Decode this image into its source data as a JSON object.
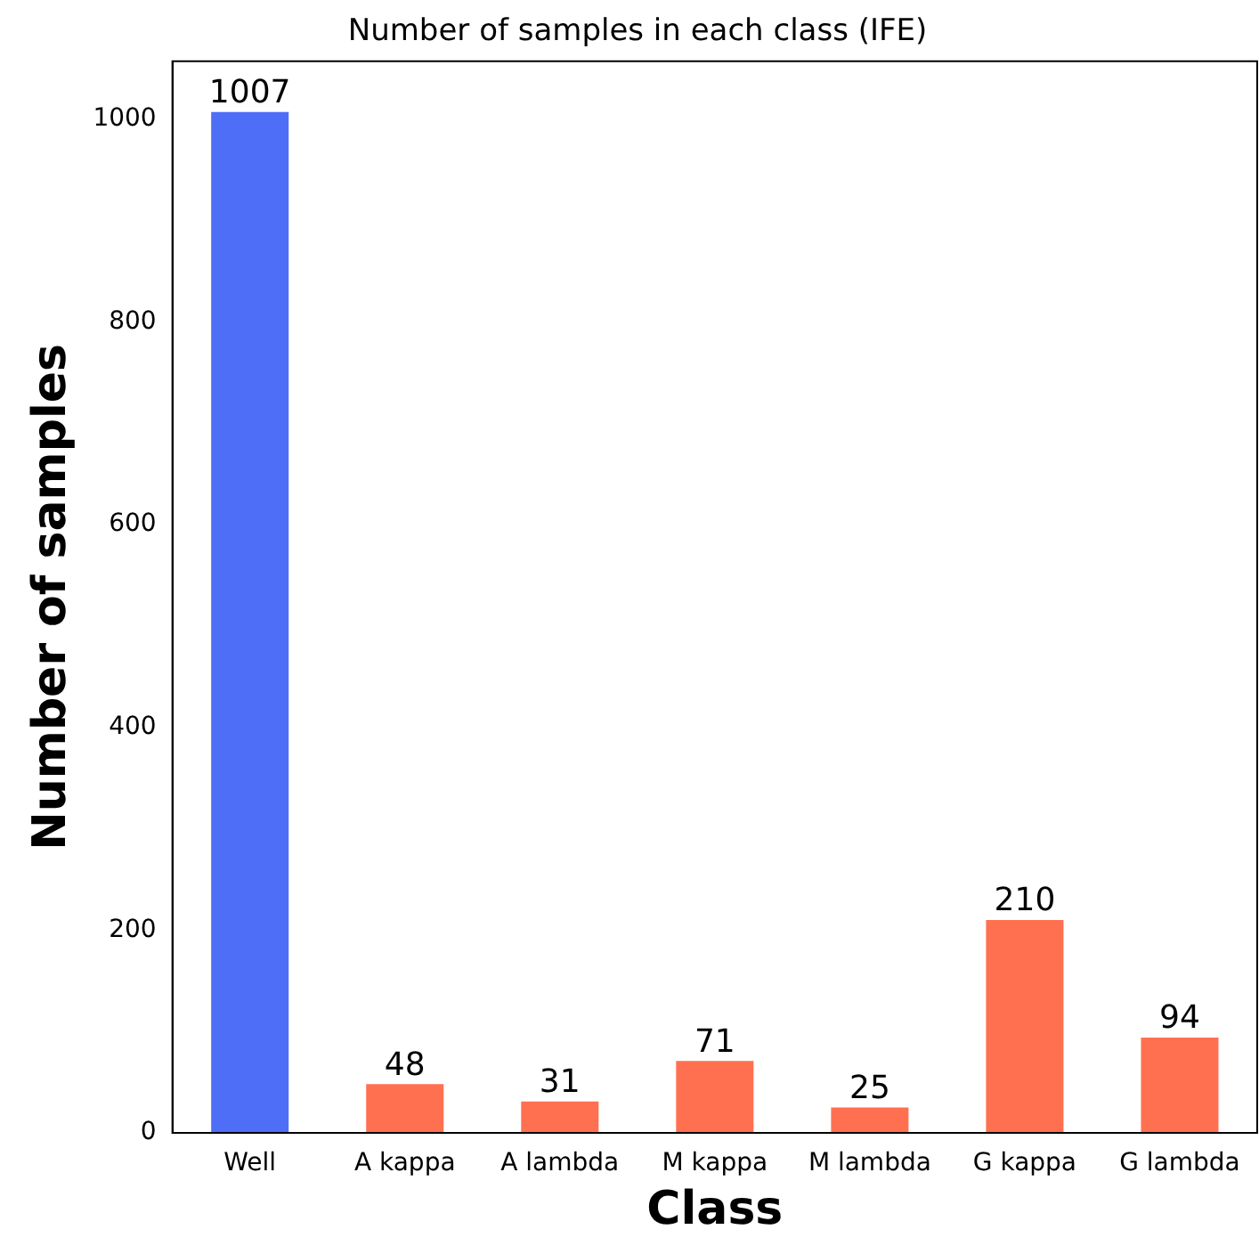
{
  "chart_data": {
    "type": "bar",
    "title": "Number of samples in each class (IFE)",
    "xlabel": "Class",
    "ylabel": "Number of samples",
    "categories": [
      "Well",
      "A kappa",
      "A lambda",
      "M kappa",
      "M lambda",
      "G kappa",
      "G lambda"
    ],
    "values": [
      1007,
      48,
      31,
      71,
      25,
      210,
      94
    ],
    "colors": [
      "#4f6ef7",
      "#ff7051",
      "#ff7051",
      "#ff7051",
      "#ff7051",
      "#ff7051",
      "#ff7051"
    ],
    "ylim": [
      0,
      1057
    ],
    "yticks": [
      0,
      200,
      400,
      600,
      800,
      1000
    ],
    "grid": false,
    "legend": false,
    "data_labels": true
  }
}
